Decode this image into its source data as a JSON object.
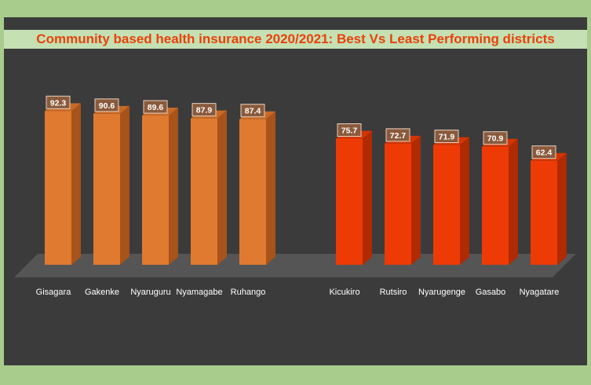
{
  "chart_data": {
    "type": "bar",
    "title": "Community based health insurance 2020/2021: Best Vs Least Performing districts",
    "xlabel": "",
    "ylabel": "",
    "ylim": [
      0,
      100
    ],
    "grid": false,
    "legend": "none",
    "categories": [
      "Gisagara",
      "Gakenke",
      "Nyaruguru",
      "Nyamagabe",
      "Ruhango",
      "Kicukiro",
      "Rutsiro",
      "Nyarugenge",
      "Gasabo",
      "Nyagatare"
    ],
    "values": [
      92.3,
      90.6,
      89.6,
      87.9,
      87.4,
      75.7,
      72.7,
      71.9,
      70.9,
      62.4
    ],
    "value_labels": [
      "92.3",
      "90.6",
      "89.6",
      "87.9",
      "87.4",
      "75.7",
      "72.7",
      "71.9",
      "70.9",
      "62.4"
    ],
    "groups": [
      "best",
      "best",
      "best",
      "best",
      "best",
      "least",
      "least",
      "least",
      "least",
      "least"
    ]
  },
  "colors": {
    "background": "#a8cc8c",
    "plot_area": "#3b3b3b",
    "title_band": "#c5e0b3",
    "title_text": "#e8420a",
    "floor": "#555555",
    "best_front": "#e07a30",
    "best_side": "#a8531a",
    "best_top": "#c86a26",
    "least_front": "#ee3b06",
    "least_side": "#b02a02",
    "least_top": "#d23504",
    "label_box": "#8a5a3c",
    "label_border": "#e9d2c2"
  }
}
